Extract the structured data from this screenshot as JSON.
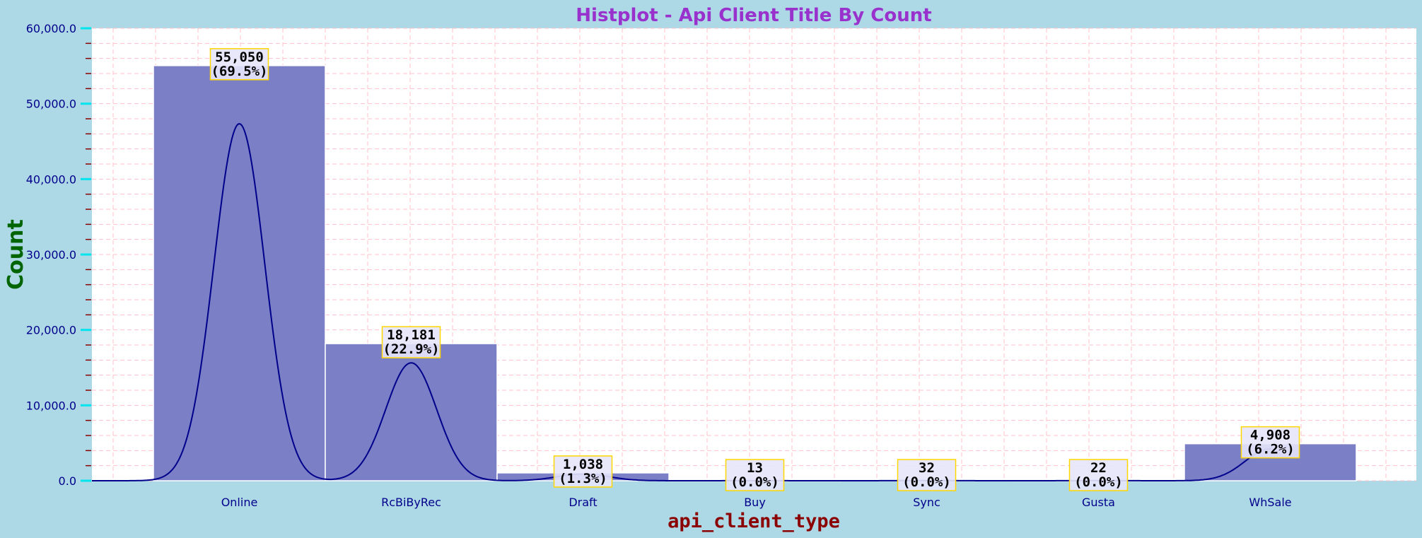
{
  "colors": {
    "background": "#add8e6",
    "plot_background": "#ffffff",
    "bar": "#7b7fc6",
    "kde_line": "#00008b",
    "grid": "#ffc0cb",
    "title": "#9932cc",
    "ylabel": "#006400",
    "xlabel": "#8b0000",
    "tick_label": "#00008b",
    "major_tick": "#00e5ee",
    "minor_tick": "#8b0000",
    "label_box_fill": "#e6e6fa",
    "label_box_border": "#ffd700"
  },
  "chart_data": {
    "type": "bar",
    "title": "Histplot - Api Client Title By Count",
    "xlabel": "api_client_type",
    "ylabel": "Count",
    "categories": [
      "Online",
      "RcBiByRec",
      "Draft",
      "Buy",
      "Sync",
      "Gusta",
      "WhSale"
    ],
    "values": [
      55050,
      18181,
      1038,
      13,
      32,
      22,
      4908
    ],
    "value_labels": [
      "55,050",
      "18,181",
      "1,038",
      "13",
      "32",
      "22",
      "4,908"
    ],
    "percent_labels": [
      "(69.5%)",
      "(22.9%)",
      "(1.3%)",
      "(0.0%)",
      "(0.0%)",
      "(0.0%)",
      "(6.2%)"
    ],
    "ylim": [
      0,
      60000
    ],
    "yticks": [
      0,
      10000,
      20000,
      30000,
      40000,
      50000,
      60000
    ],
    "ytick_labels": [
      "0.0",
      "10,000.0",
      "20,000.0",
      "30,000.0",
      "40,000.0",
      "50,000.0",
      "60,000.0"
    ],
    "kde_curve": true,
    "grid": true,
    "legend": false
  }
}
